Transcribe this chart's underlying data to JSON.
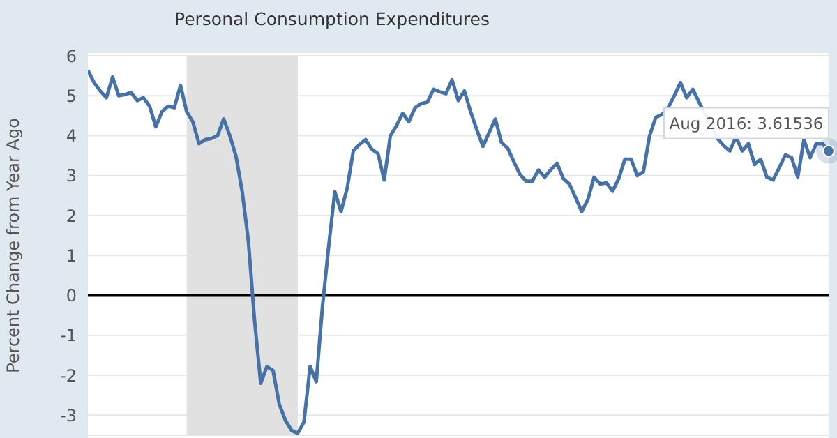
{
  "chart_data": {
    "type": "line",
    "title": "Personal Consumption Expenditures",
    "ylabel": "Percent Change from Year Ago",
    "categories": [
      null,
      null,
      null,
      null,
      null,
      null,
      null,
      null,
      null,
      null,
      null,
      null,
      null,
      null,
      null,
      null,
      null,
      null,
      null,
      null,
      null,
      null,
      null,
      null,
      null,
      null,
      null,
      null,
      null,
      null,
      null,
      null,
      null,
      null,
      null,
      null,
      null,
      null,
      null,
      null,
      null,
      null,
      null,
      null,
      null,
      null,
      null,
      null,
      null,
      null,
      null,
      null,
      null,
      null,
      null,
      null,
      null,
      null,
      null,
      null,
      null,
      null,
      null,
      null,
      null,
      null,
      null,
      null,
      null,
      null,
      null,
      null,
      null,
      null,
      null,
      null,
      null,
      null,
      null,
      null,
      null,
      null,
      null,
      null,
      null,
      null,
      null,
      null,
      null,
      null,
      null,
      null,
      null,
      null,
      null,
      null,
      null,
      null,
      null,
      null,
      null,
      null,
      null,
      null,
      null,
      null,
      null,
      null,
      null,
      null,
      null,
      null,
      null,
      null,
      null,
      null,
      null,
      null,
      null,
      null,
      null
    ],
    "series": [
      {
        "color": "#4572a7",
        "values": [
          5.64,
          5.33,
          5.12,
          4.95,
          5.47,
          5.0,
          5.03,
          5.08,
          4.88,
          4.95,
          4.74,
          4.22,
          4.6,
          4.74,
          4.7,
          5.26,
          4.6,
          4.35,
          3.8,
          3.9,
          3.93,
          4.0,
          4.42,
          4.0,
          3.48,
          2.6,
          1.36,
          -0.63,
          -2.2,
          -1.78,
          -1.88,
          -2.72,
          -3.13,
          -3.38,
          -3.45,
          -3.17,
          -1.78,
          -2.16,
          -0.28,
          1.22,
          2.6,
          2.1,
          2.68,
          3.62,
          3.78,
          3.9,
          3.66,
          3.55,
          2.89,
          4.0,
          4.25,
          4.56,
          4.35,
          4.7,
          4.8,
          4.84,
          5.16,
          5.1,
          5.05,
          5.4,
          4.88,
          5.12,
          4.6,
          4.15,
          3.73,
          4.08,
          4.42,
          3.83,
          3.69,
          3.35,
          3.03,
          2.86,
          2.86,
          3.14,
          2.96,
          3.15,
          3.31,
          2.93,
          2.79,
          2.45,
          2.1,
          2.4,
          2.96,
          2.79,
          2.82,
          2.61,
          2.93,
          3.41,
          3.41,
          3.0,
          3.1,
          4.0,
          4.46,
          4.53,
          4.7,
          5.0,
          5.33,
          4.95,
          5.16,
          4.84,
          null,
          null,
          3.93,
          3.75,
          3.62,
          3.97,
          3.62,
          3.8,
          3.28,
          3.41,
          2.96,
          2.89,
          3.2,
          3.52,
          3.45,
          2.96,
          3.9,
          3.45,
          3.8,
          3.8,
          3.61536
        ]
      }
    ],
    "ylim": [
      -3.5,
      6
    ],
    "yticks": [
      -3,
      -2,
      -1,
      0,
      1,
      2,
      3,
      4,
      5,
      6
    ],
    "tick_labels": "y",
    "grid": "y",
    "ref_lines": [
      {
        "axis": "y",
        "value": 0,
        "color": "#000000"
      }
    ],
    "annotations": [
      {
        "text": "Aug 2016: 3.61536",
        "y": 3.61536
      }
    ]
  }
}
